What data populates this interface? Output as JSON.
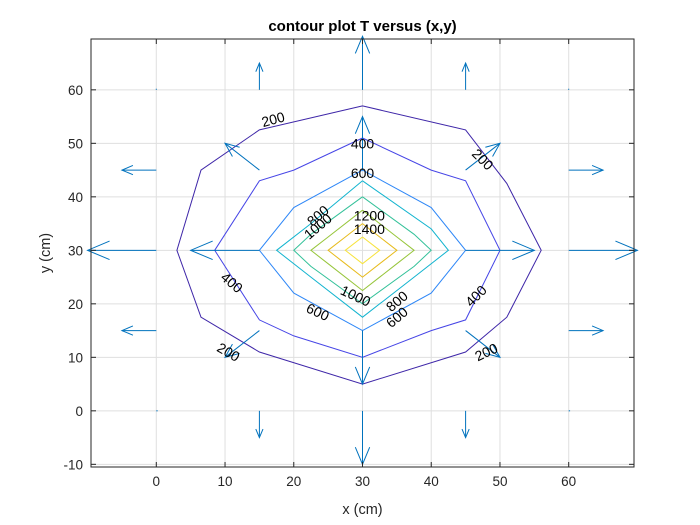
{
  "chart_data": {
    "type": "contour",
    "title": "contour plot T versus (x,y)",
    "xlabel": "x (cm)",
    "ylabel": "y (cm)",
    "xlim": [
      -9.5,
      69.5
    ],
    "ylim": [
      -10.5,
      69.5
    ],
    "xticks": [
      0,
      10,
      20,
      30,
      40,
      50,
      60
    ],
    "yticks": [
      -10,
      0,
      10,
      20,
      30,
      40,
      50,
      60
    ],
    "grid": true,
    "levels": [
      {
        "value": 200,
        "color": "#3e26a8",
        "points": [
          [
            30,
            57
          ],
          [
            45,
            52.5
          ],
          [
            51,
            42.5
          ],
          [
            56,
            30
          ],
          [
            51,
            17.5
          ],
          [
            45,
            11
          ],
          [
            30,
            5
          ],
          [
            15,
            11
          ],
          [
            6.5,
            17.5
          ],
          [
            3,
            30
          ],
          [
            6.5,
            45
          ],
          [
            15,
            52.5
          ],
          [
            30,
            57
          ]
        ]
      },
      {
        "value": 400,
        "color": "#4645e6",
        "points": [
          [
            30,
            51
          ],
          [
            40,
            45
          ],
          [
            45,
            43
          ],
          [
            50,
            30
          ],
          [
            45,
            17
          ],
          [
            40,
            15
          ],
          [
            30,
            10
          ],
          [
            20,
            14
          ],
          [
            15,
            17
          ],
          [
            8.5,
            30
          ],
          [
            15,
            43
          ],
          [
            20,
            45
          ],
          [
            30,
            51
          ]
        ]
      },
      {
        "value": 600,
        "color": "#2e87f7",
        "points": [
          [
            30,
            45
          ],
          [
            40,
            38
          ],
          [
            45,
            30
          ],
          [
            40,
            22
          ],
          [
            30,
            15
          ],
          [
            20,
            22
          ],
          [
            15,
            30
          ],
          [
            20,
            38
          ],
          [
            30,
            45
          ]
        ]
      },
      {
        "value": 800,
        "color": "#12b4cf",
        "points": [
          [
            30,
            43
          ],
          [
            40,
            34
          ],
          [
            42.5,
            30
          ],
          [
            37.5,
            25
          ],
          [
            30,
            17.5
          ],
          [
            22.5,
            25
          ],
          [
            17.5,
            30
          ],
          [
            22.5,
            35
          ],
          [
            30,
            43
          ]
        ]
      },
      {
        "value": 1000,
        "color": "#33c199",
        "points": [
          [
            30,
            40
          ],
          [
            37.5,
            33
          ],
          [
            40,
            30
          ],
          [
            37.5,
            27
          ],
          [
            30,
            20
          ],
          [
            22.5,
            27
          ],
          [
            20,
            30
          ],
          [
            22.5,
            33
          ],
          [
            30,
            40
          ]
        ]
      },
      {
        "value": 1200,
        "color": "#96c53a",
        "points": [
          [
            30,
            37.5
          ],
          [
            35,
            32.5
          ],
          [
            37.5,
            30
          ],
          [
            35,
            27.5
          ],
          [
            30,
            22.5
          ],
          [
            25,
            27.5
          ],
          [
            22.5,
            30
          ],
          [
            25,
            32.5
          ],
          [
            30,
            37.5
          ]
        ]
      },
      {
        "value": 1400,
        "color": "#e7bb1c",
        "points": [
          [
            30,
            35
          ],
          [
            32.5,
            32.5
          ],
          [
            35,
            30
          ],
          [
            32.5,
            27.5
          ],
          [
            30,
            25
          ],
          [
            27.5,
            27.5
          ],
          [
            25,
            30
          ],
          [
            27.5,
            32.5
          ],
          [
            30,
            35
          ]
        ]
      },
      {
        "value": 1600,
        "color": "#f7e33b",
        "points": [
          [
            30,
            32.5
          ],
          [
            32.5,
            30
          ],
          [
            30,
            27.5
          ],
          [
            27.5,
            30
          ],
          [
            30,
            32.5
          ]
        ]
      }
    ],
    "contour_labels": [
      {
        "text": "200",
        "x": 17,
        "y": 54.5,
        "angle": -15
      },
      {
        "text": "400",
        "x": 30,
        "y": 50,
        "angle": 0
      },
      {
        "text": "600",
        "x": 30,
        "y": 44.5,
        "angle": 0
      },
      {
        "text": "800",
        "x": 23.5,
        "y": 36.5,
        "angle": -40
      },
      {
        "text": "1000",
        "x": 23.5,
        "y": 34.5,
        "angle": -40
      },
      {
        "text": "1200",
        "x": 31,
        "y": 36.5,
        "angle": 0
      },
      {
        "text": "1400",
        "x": 31,
        "y": 34,
        "angle": 0
      },
      {
        "text": "200",
        "x": 47.5,
        "y": 47,
        "angle": 45
      },
      {
        "text": "400",
        "x": 11,
        "y": 24,
        "angle": 40
      },
      {
        "text": "600",
        "x": 23.5,
        "y": 18.5,
        "angle": 25
      },
      {
        "text": "1000",
        "x": 29,
        "y": 21.5,
        "angle": 25
      },
      {
        "text": "800",
        "x": 35,
        "y": 20.5,
        "angle": -40
      },
      {
        "text": "600",
        "x": 35,
        "y": 17.5,
        "angle": -40
      },
      {
        "text": "400",
        "x": 46.5,
        "y": 21.5,
        "angle": -45
      },
      {
        "text": "200",
        "x": 10.5,
        "y": 11,
        "angle": 30
      },
      {
        "text": "200",
        "x": 48,
        "y": 11,
        "angle": -25
      }
    ],
    "quiver": {
      "color": "#0072bd",
      "vectors": [
        {
          "x": 0,
          "y": 60,
          "u": 0,
          "v": 0.2
        },
        {
          "x": 15,
          "y": 60,
          "u": 0,
          "v": 5
        },
        {
          "x": 30,
          "y": 60,
          "u": 0,
          "v": 10
        },
        {
          "x": 45,
          "y": 60,
          "u": 0,
          "v": 5
        },
        {
          "x": 60,
          "y": 60,
          "u": 0,
          "v": 0.2
        },
        {
          "x": 0,
          "y": 45,
          "u": -5,
          "v": 0
        },
        {
          "x": 15,
          "y": 45,
          "u": -5,
          "v": 5
        },
        {
          "x": 30,
          "y": 45,
          "u": 0,
          "v": 10
        },
        {
          "x": 45,
          "y": 45,
          "u": 5,
          "v": 5
        },
        {
          "x": 60,
          "y": 45,
          "u": 5,
          "v": 0
        },
        {
          "x": 0,
          "y": 30,
          "u": -10,
          "v": 0
        },
        {
          "x": 15,
          "y": 30,
          "u": -10,
          "v": 0
        },
        {
          "x": 45,
          "y": 30,
          "u": 10,
          "v": 0
        },
        {
          "x": 60,
          "y": 30,
          "u": 10,
          "v": 0
        },
        {
          "x": 0,
          "y": 15,
          "u": -5,
          "v": 0
        },
        {
          "x": 15,
          "y": 15,
          "u": -5,
          "v": -5
        },
        {
          "x": 30,
          "y": 15,
          "u": 0,
          "v": -10
        },
        {
          "x": 45,
          "y": 15,
          "u": 5,
          "v": -5
        },
        {
          "x": 60,
          "y": 15,
          "u": 5,
          "v": 0
        },
        {
          "x": 0,
          "y": 0,
          "u": 0.2,
          "v": 0
        },
        {
          "x": 15,
          "y": 0,
          "u": 0,
          "v": -5
        },
        {
          "x": 30,
          "y": 0,
          "u": 0,
          "v": -10
        },
        {
          "x": 45,
          "y": 0,
          "u": 0,
          "v": -5
        },
        {
          "x": 60,
          "y": 0,
          "u": 0.2,
          "v": 0
        }
      ]
    }
  }
}
